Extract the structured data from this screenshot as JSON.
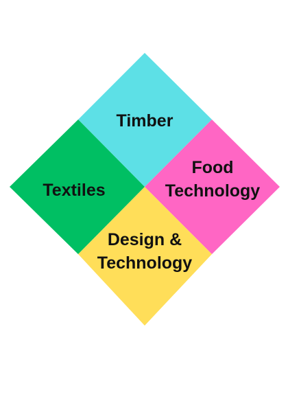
{
  "diagram": {
    "quadrants": {
      "top": {
        "lines": [
          "Timber"
        ],
        "color": "#5de0e6"
      },
      "left": {
        "lines": [
          "Textiles"
        ],
        "color": "#00bf63"
      },
      "right": {
        "lines": [
          "Food",
          "Technology"
        ],
        "color": "#ff66c4"
      },
      "bottom": {
        "lines": [
          "Design &",
          "Technology"
        ],
        "color": "#ffde59"
      }
    }
  }
}
